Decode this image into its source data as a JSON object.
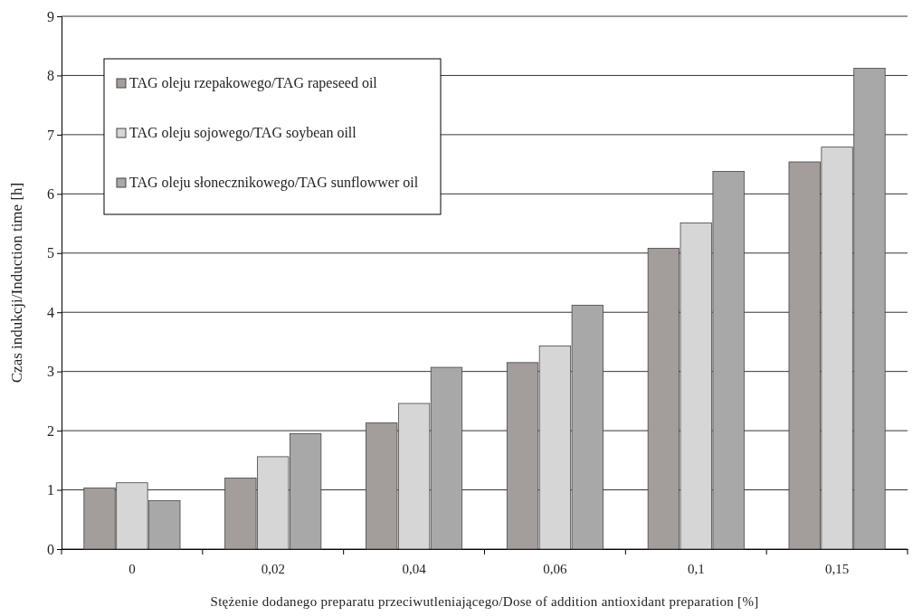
{
  "chart_data": {
    "type": "bar",
    "xlabel": "Stężenie dodanego preparatu przeciwutleniającego/Dose of addition antioxidant preparation [%]",
    "ylabel": "Czas indukcji/Induction time [h]",
    "categories": [
      "0",
      "0,02",
      "0,04",
      "0,06",
      "0,1",
      "0,15"
    ],
    "series": [
      {
        "name": "TAG oleju rzepakowego/TAG rapeseed oil",
        "color": "#a39d9b",
        "values": [
          1.03,
          1.2,
          2.13,
          3.15,
          5.08,
          6.54
        ]
      },
      {
        "name": "TAG oleju sojowego/TAG soybean oill",
        "color": "#d6d6d6",
        "values": [
          1.12,
          1.56,
          2.46,
          3.43,
          5.51,
          6.79
        ]
      },
      {
        "name": "TAG oleju słonecznikowego/TAG sunflowwer oil",
        "color": "#a8a8a8",
        "values": [
          0.82,
          1.95,
          3.07,
          4.12,
          6.38,
          8.12
        ]
      }
    ],
    "ylim": [
      0,
      9
    ],
    "yticks": [
      0,
      1,
      2,
      3,
      4,
      5,
      6,
      7,
      8,
      9
    ],
    "grid": "y",
    "legend": "top left"
  }
}
